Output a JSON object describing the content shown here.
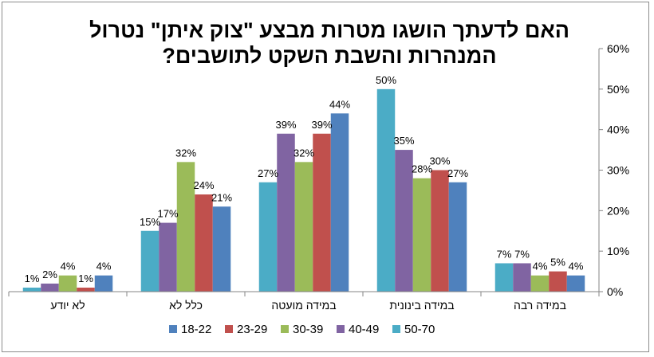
{
  "chart_data": {
    "type": "bar",
    "title_lines": [
      "האם לדעתך הושגו מטרות מבצע \"צוק איתן\" נטרול",
      "המנהרות והשבת השקט לתושבים?"
    ],
    "categories": [
      "במידה רבה",
      "במידה בינונית",
      "במידה מועטה",
      "כלל לא",
      "לא יודע"
    ],
    "series": [
      {
        "name": "18-22",
        "color": "#4f81bd",
        "values": [
          4,
          27,
          44,
          21,
          4
        ],
        "labels": [
          "4%",
          "27%",
          "44%",
          "21%",
          "4%"
        ]
      },
      {
        "name": "23-29",
        "color": "#c0504d",
        "values": [
          5,
          30,
          39,
          24,
          1
        ],
        "labels": [
          "5%",
          "30%",
          "39%",
          "24%",
          "1%"
        ]
      },
      {
        "name": "30-39",
        "color": "#9bbb59",
        "values": [
          4,
          28,
          32,
          32,
          4
        ],
        "labels": [
          "4%",
          "28%",
          "32%",
          "32%",
          "4%"
        ]
      },
      {
        "name": "40-49",
        "color": "#8064a2",
        "values": [
          7,
          35,
          39,
          17,
          2
        ],
        "labels": [
          "7%",
          "35%",
          "39%",
          "17%",
          "2%"
        ]
      },
      {
        "name": "50-70",
        "color": "#4bacc6",
        "values": [
          7,
          50,
          27,
          15,
          1
        ],
        "labels": [
          "7%",
          "50%",
          "27%",
          "15%",
          "1%"
        ]
      }
    ],
    "ylim": [
      0,
      60
    ],
    "yticks": [
      0,
      10,
      20,
      30,
      40,
      50,
      60
    ],
    "ytick_labels": [
      "0%",
      "10%",
      "20%",
      "30%",
      "40%",
      "50%",
      "60%"
    ],
    "y_axis_side": "right",
    "category_order": "right-to-left",
    "grid": false,
    "legend_position": "bottom",
    "legend_order": [
      "18-22",
      "23-29",
      "30-39",
      "40-49",
      "50-70"
    ]
  }
}
